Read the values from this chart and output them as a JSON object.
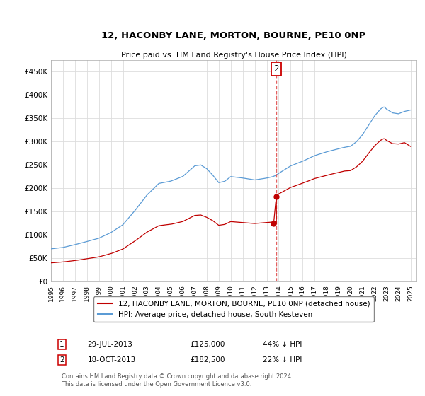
{
  "title": "12, HACONBY LANE, MORTON, BOURNE, PE10 0NP",
  "subtitle": "Price paid vs. HM Land Registry's House Price Index (HPI)",
  "ylabel_ticks": [
    "£0",
    "£50K",
    "£100K",
    "£150K",
    "£200K",
    "£250K",
    "£300K",
    "£350K",
    "£400K",
    "£450K"
  ],
  "ytick_values": [
    0,
    50000,
    100000,
    150000,
    200000,
    250000,
    300000,
    350000,
    400000,
    450000
  ],
  "ylim": [
    0,
    475000
  ],
  "xlim_start": 1995.0,
  "xlim_end": 2025.5,
  "hpi_color": "#5b9bd5",
  "price_color": "#c00000",
  "dashed_color": "#e05050",
  "background_color": "#ffffff",
  "grid_color": "#dddddd",
  "sale1_year": 2013.58,
  "sale1_price_val": 125000,
  "sale2_year": 2013.8,
  "sale2_price_val": 182500,
  "vline_x": 2013.8,
  "sale1_date": "29-JUL-2013",
  "sale1_price": "£125,000",
  "sale1_pct": "44% ↓ HPI",
  "sale2_date": "18-OCT-2013",
  "sale2_price": "£182,500",
  "sale2_pct": "22% ↓ HPI",
  "legend_label1": "12, HACONBY LANE, MORTON, BOURNE, PE10 0NP (detached house)",
  "legend_label2": "HPI: Average price, detached house, South Kesteven",
  "footer": "Contains HM Land Registry data © Crown copyright and database right 2024.\nThis data is licensed under the Open Government Licence v3.0.",
  "xtick_years": [
    1995,
    1996,
    1997,
    1998,
    1999,
    2000,
    2001,
    2002,
    2003,
    2004,
    2005,
    2006,
    2007,
    2008,
    2009,
    2010,
    2011,
    2012,
    2013,
    2014,
    2015,
    2016,
    2017,
    2018,
    2019,
    2020,
    2021,
    2022,
    2023,
    2024,
    2025
  ]
}
